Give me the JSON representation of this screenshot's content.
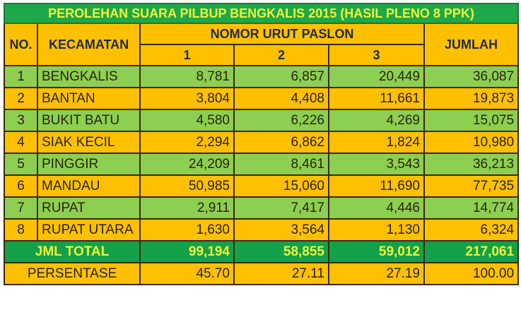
{
  "title": "PEROLEHAN SUARA PILBUP BENGKALIS 2015 (HASIL PLENO 8 PPK)",
  "headers": {
    "no": "NO.",
    "kecamatan": "KECAMATAN",
    "paslon": "NOMOR URUT PASLON",
    "p1": "1",
    "p2": "2",
    "p3": "3",
    "jumlah": "JUMLAH"
  },
  "rows": [
    {
      "no": "1",
      "kecamatan": "BENGKALIS",
      "p1": "8,781",
      "p2": "6,857",
      "p3": "20,449",
      "jumlah": "36,087"
    },
    {
      "no": "2",
      "kecamatan": "BANTAN",
      "p1": "3,804",
      "p2": "4,408",
      "p3": "11,661",
      "jumlah": "19,873"
    },
    {
      "no": "3",
      "kecamatan": "BUKIT BATU",
      "p1": "4,580",
      "p2": "6,226",
      "p3": "4,269",
      "jumlah": "15,075"
    },
    {
      "no": "4",
      "kecamatan": "SIAK KECIL",
      "p1": "2,294",
      "p2": "6,862",
      "p3": "1,824",
      "jumlah": "10,980"
    },
    {
      "no": "5",
      "kecamatan": "PINGGIR",
      "p1": "24,209",
      "p2": "8,461",
      "p3": "3,543",
      "jumlah": "36,213"
    },
    {
      "no": "6",
      "kecamatan": "MANDAU",
      "p1": "50,985",
      "p2": "15,060",
      "p3": "11,690",
      "jumlah": "77,735"
    },
    {
      "no": "7",
      "kecamatan": "RUPAT",
      "p1": "2,911",
      "p2": "7,417",
      "p3": "4,446",
      "jumlah": "14,774"
    },
    {
      "no": "8",
      "kecamatan": "RUPAT UTARA",
      "p1": "1,630",
      "p2": "3,564",
      "p3": "1,130",
      "jumlah": "6,324"
    }
  ],
  "total": {
    "label": "JML TOTAL",
    "p1": "99,194",
    "p2": "58,855",
    "p3": "59,012",
    "jumlah": "217,061"
  },
  "persentase": {
    "label": "PERSENTASE",
    "p1": "45.70",
    "p2": "27.11",
    "p3": "27.19",
    "jumlah": "100.00"
  }
}
